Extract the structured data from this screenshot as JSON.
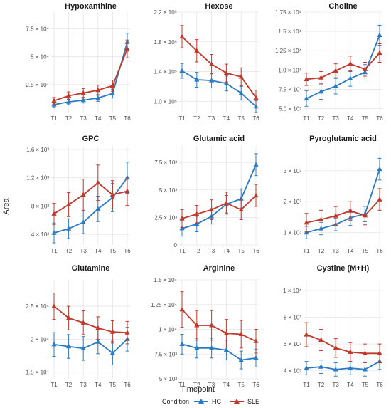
{
  "colors": {
    "hc": "#2b7bc4",
    "sle": "#c0392b",
    "grid": "#e6e6e6"
  },
  "chart_data": {
    "type": "line",
    "xlabel": "Timepoint",
    "ylabel": "Area",
    "x": [
      "T1",
      "T2",
      "T3",
      "T4",
      "T5",
      "T6"
    ],
    "legend": {
      "title": "Condition",
      "placement": "bottom",
      "entries": [
        "HC",
        "SLE"
      ]
    },
    "panels": [
      {
        "title": "Hypoxanthine",
        "ylim": [
          0,
          90000
        ],
        "yticks": [
          {
            "v": 25000,
            "label": "2.5 × 10⁴"
          },
          {
            "v": 50000,
            "label": "5 × 10⁴"
          },
          {
            "v": 75000,
            "label": "7.5 × 10⁴"
          }
        ],
        "series": [
          {
            "name": "HC",
            "values": [
              7000,
              9500,
              11000,
              13000,
              17000,
              63000
            ],
            "err": [
              2500,
              2500,
              2500,
              3000,
              4000,
              8000
            ]
          },
          {
            "name": "SLE",
            "values": [
              10500,
              15000,
              17500,
              20000,
              24000,
              57000
            ],
            "err": [
              3000,
              3500,
              4000,
              4500,
              5000,
              8000
            ]
          }
        ]
      },
      {
        "title": "Hexose",
        "ylim": [
          85000,
          220000
        ],
        "yticks": [
          {
            "v": 100000,
            "label": "1.0 × 10⁵"
          },
          {
            "v": 140000,
            "label": "1.4 × 10⁵"
          },
          {
            "v": 180000,
            "label": "1.8 × 10⁵"
          },
          {
            "v": 220000,
            "label": "2.2 × 10⁵"
          }
        ],
        "series": [
          {
            "name": "HC",
            "values": [
              141000,
              129000,
              128000,
              124000,
              111000,
              93000
            ],
            "err": [
              10000,
              10000,
              10000,
              10000,
              9000,
              8000
            ]
          },
          {
            "name": "SLE",
            "values": [
              187000,
              168000,
              150000,
              138000,
              133000,
              105000
            ],
            "err": [
              15000,
              15000,
              13000,
              12000,
              12000,
              10000
            ]
          }
        ]
      },
      {
        "title": "Choline",
        "ylim": [
          4500,
          17500
        ],
        "yticks": [
          {
            "v": 5000,
            "label": "5.0 × 10³"
          },
          {
            "v": 7500,
            "label": "7.5 × 10³"
          },
          {
            "v": 10000,
            "label": "1.0 × 10⁴"
          },
          {
            "v": 12500,
            "label": "1.25 × 10⁴"
          },
          {
            "v": 15000,
            "label": "1.5 × 10⁴"
          },
          {
            "v": 17500,
            "label": "1.75 × 10⁴"
          }
        ],
        "series": [
          {
            "name": "HC",
            "values": [
              6300,
              7200,
              7900,
              8900,
              9700,
              14500
            ],
            "err": [
              1000,
              1000,
              1000,
              1000,
              1000,
              1300
            ]
          },
          {
            "name": "SLE",
            "values": [
              8800,
              9000,
              9900,
              10800,
              10100,
              12200
            ],
            "err": [
              800,
              800,
              900,
              1000,
              900,
              1200
            ]
          }
        ]
      },
      {
        "title": "GPC",
        "ylim": [
          250,
          1650
        ],
        "yticks": [
          {
            "v": 400,
            "label": "4 × 10²"
          },
          {
            "v": 800,
            "label": "8 × 10²"
          },
          {
            "v": 1200,
            "label": "1.2 × 10³"
          },
          {
            "v": 1600,
            "label": "1.6 × 10³"
          }
        ],
        "series": [
          {
            "name": "HC",
            "values": [
              420,
              480,
              570,
              760,
              920,
              1200
            ],
            "err": [
              140,
              140,
              160,
              180,
              200,
              220
            ]
          },
          {
            "name": "SLE",
            "values": [
              690,
              820,
              960,
              1130,
              960,
              1010
            ],
            "err": [
              150,
              170,
              220,
              250,
              200,
              200
            ]
          }
        ]
      },
      {
        "title": "Glutamic acid",
        "ylim": [
          0,
          9000
        ],
        "yticks": [
          {
            "v": 0,
            "label": "0"
          },
          {
            "v": 2500,
            "label": "2.5 × 10³"
          },
          {
            "v": 5000,
            "label": "5 × 10³"
          },
          {
            "v": 7500,
            "label": "7.5 × 10³"
          }
        ],
        "series": [
          {
            "name": "HC",
            "values": [
              1500,
              1900,
              2600,
              3700,
              4200,
              7300
            ],
            "err": [
              700,
              700,
              700,
              800,
              900,
              1000
            ]
          },
          {
            "name": "SLE",
            "values": [
              2400,
              2800,
              3200,
              3800,
              3200,
              4500
            ],
            "err": [
              800,
              800,
              900,
              1000,
              900,
              1000
            ]
          }
        ]
      },
      {
        "title": "Pyroglutamic acid",
        "ylim": [
          600,
          3800
        ],
        "yticks": [
          {
            "v": 1000,
            "label": "1 × 10³"
          },
          {
            "v": 2000,
            "label": "2 × 10³"
          },
          {
            "v": 3000,
            "label": "3 × 10³"
          }
        ],
        "series": [
          {
            "name": "HC",
            "values": [
              1000,
              1130,
              1260,
              1480,
              1600,
              3050
            ],
            "err": [
              200,
              200,
              200,
              250,
              250,
              350
            ]
          },
          {
            "name": "SLE",
            "values": [
              1320,
              1420,
              1540,
              1700,
              1550,
              2070
            ],
            "err": [
              300,
              300,
              300,
              300,
              300,
              350
            ]
          }
        ]
      },
      {
        "title": "Glutamine",
        "ylim": [
          14000,
          29000
        ],
        "yticks": [
          {
            "v": 15000,
            "label": "1.5 × 10⁴"
          },
          {
            "v": 20000,
            "label": "2 × 10⁴"
          },
          {
            "v": 25000,
            "label": "2.5 × 10⁴"
          }
        ],
        "series": [
          {
            "name": "HC",
            "values": [
              19200,
              18900,
              18600,
              19600,
              17900,
              20000
            ],
            "err": [
              1800,
              1800,
              1800,
              1800,
              1800,
              1800
            ]
          },
          {
            "name": "SLE",
            "values": [
              25000,
              23200,
              22500,
              21700,
              21100,
              21000
            ],
            "err": [
              2000,
              1800,
              1800,
              1700,
              1700,
              1700
            ]
          }
        ]
      },
      {
        "title": "Arginine",
        "ylim": [
          5000,
          15000
        ],
        "yticks": [
          {
            "v": 5000,
            "label": "5 × 10³"
          },
          {
            "v": 7500,
            "label": "7.5 × 10³"
          },
          {
            "v": 10000,
            "label": "1 × 10⁴"
          },
          {
            "v": 12500,
            "label": "1.25 × 10⁴"
          },
          {
            "v": 15000,
            "label": "1.5 × 10⁴"
          }
        ],
        "series": [
          {
            "name": "HC",
            "values": [
              8500,
              8100,
              8100,
              7900,
              6900,
              7100
            ],
            "err": [
              1000,
              1000,
              1000,
              1000,
              900,
              900
            ]
          },
          {
            "name": "SLE",
            "values": [
              12000,
              10400,
              10400,
              9600,
              9500,
              8800
            ],
            "err": [
              1800,
              1500,
              1500,
              1400,
              1400,
              1200
            ]
          }
        ]
      },
      {
        "title": "Cystine (M+H)",
        "ylim": [
          3400,
          10800
        ],
        "yticks": [
          {
            "v": 4000,
            "label": "4 × 10³"
          },
          {
            "v": 6000,
            "label": "6 × 10³"
          },
          {
            "v": 8000,
            "label": "8 × 10³"
          },
          {
            "v": 10000,
            "label": "1 × 10⁴"
          }
        ],
        "series": [
          {
            "name": "HC",
            "values": [
              4200,
              4300,
              4100,
              4200,
              4100,
              4700
            ],
            "err": [
              500,
              500,
              500,
              500,
              500,
              600
            ]
          },
          {
            "name": "SLE",
            "values": [
              6700,
              6300,
              5700,
              5400,
              5300,
              5300
            ],
            "err": [
              900,
              800,
              700,
              700,
              700,
              700
            ]
          }
        ]
      }
    ]
  }
}
